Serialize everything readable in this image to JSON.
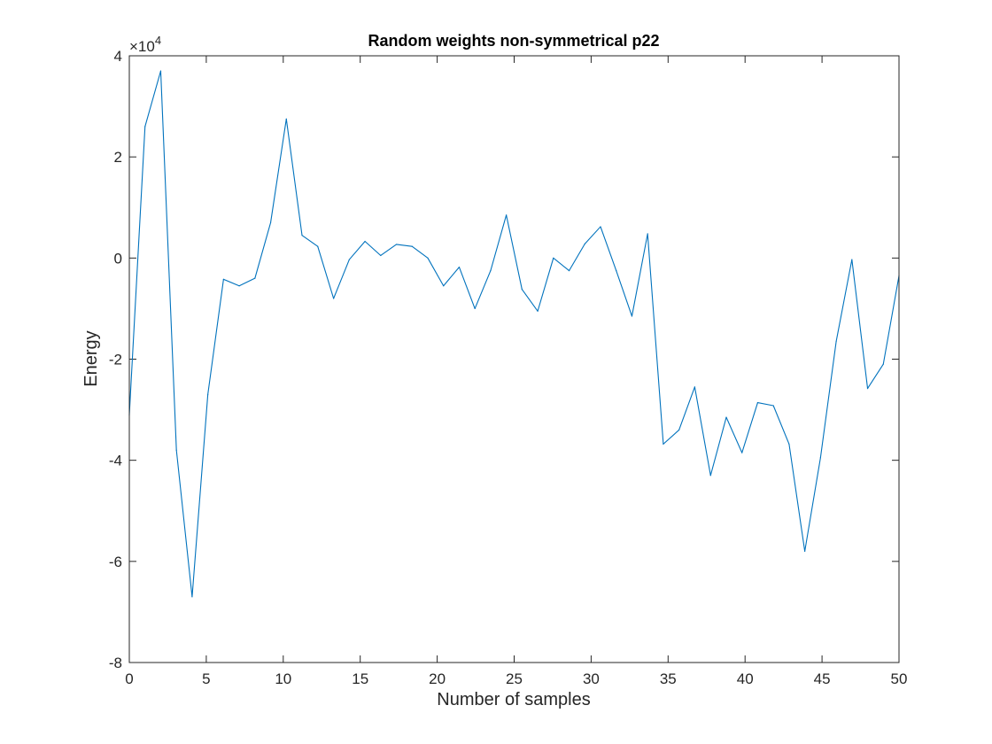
{
  "chart_data": {
    "type": "line",
    "title": "Random weights non-symmetrical p22",
    "xlabel": "Number of samples",
    "ylabel": "Energy",
    "xlim": [
      0,
      50
    ],
    "ylim": [
      -80000,
      40000
    ],
    "xticks": [
      0,
      5,
      10,
      15,
      20,
      25,
      30,
      35,
      40,
      45,
      50
    ],
    "yticks": [
      -80000,
      -60000,
      -40000,
      -20000,
      0,
      20000,
      40000
    ],
    "xtick_labels": [
      "0",
      "5",
      "10",
      "15",
      "20",
      "25",
      "30",
      "35",
      "40",
      "45",
      "50"
    ],
    "ytick_labels": [
      "-8",
      "-6",
      "-4",
      "-2",
      "0",
      "2",
      "4"
    ],
    "y_exponent": {
      "base": "×10",
      "power": "4"
    },
    "grid": false,
    "color": "#0072BD",
    "series": [
      {
        "x": [
          0,
          1.02,
          2.04,
          3.06,
          4.08,
          5.1,
          6.12,
          7.14,
          8.16,
          9.18,
          10.2,
          11.22,
          12.24,
          13.27,
          14.29,
          15.31,
          16.33,
          17.35,
          18.37,
          19.39,
          20.41,
          21.43,
          22.45,
          23.47,
          24.49,
          25.51,
          26.53,
          27.55,
          28.57,
          29.59,
          30.61,
          31.63,
          32.65,
          33.67,
          34.69,
          35.71,
          36.73,
          37.76,
          38.78,
          39.8,
          40.82,
          41.84,
          42.86,
          43.88,
          44.9,
          45.92,
          46.94,
          47.96,
          48.98,
          50
        ],
        "y": [
          -31000,
          26000,
          37000,
          -38000,
          -67000,
          -27000,
          -4200,
          -5500,
          -4000,
          7000,
          27500,
          4500,
          2300,
          -8000,
          -300,
          3300,
          500,
          2700,
          2300,
          0,
          -5500,
          -1800,
          -10000,
          -2500,
          8500,
          -6200,
          -10500,
          0,
          -2500,
          2800,
          6200,
          -2500,
          -11500,
          4800,
          -36800,
          -34000,
          -25500,
          -43000,
          -31500,
          -38500,
          -28600,
          -29200,
          -36800,
          -58000,
          -39500,
          -16500,
          -300,
          -25800,
          -21000,
          -3500
        ]
      }
    ]
  }
}
